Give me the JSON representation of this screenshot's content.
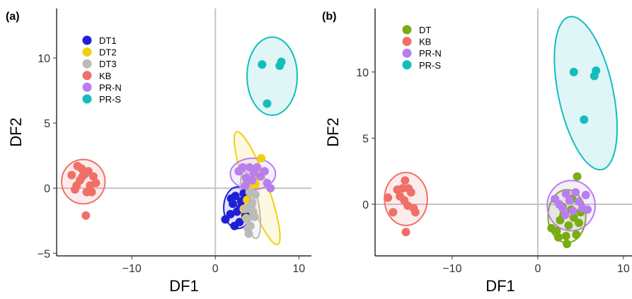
{
  "chart_data": [
    {
      "panel_label": "(a)",
      "type": "scatter",
      "xlabel": "DF1",
      "ylabel": "DF2",
      "xlim": [
        -19,
        11.5
      ],
      "ylim": [
        -5.2,
        13.8
      ],
      "xticks": [
        -10,
        0,
        10
      ],
      "yticks": [
        -5,
        0,
        5,
        10
      ],
      "xtick_labels": [
        "−10",
        "0",
        "10"
      ],
      "ytick_labels": [
        "−5",
        "0",
        "5",
        "10"
      ],
      "reference_lines": {
        "x": 0,
        "y": 0
      },
      "legend_position": "top-left",
      "series": [
        {
          "name": "DT1",
          "color": "#1f1fd6",
          "ellipse": {
            "cx": 2.7,
            "cy": -1.5,
            "rx": 1.7,
            "ry": 1.6,
            "angle": 0
          },
          "points": [
            [
              1.2,
              -2.4
            ],
            [
              1.8,
              -2.0
            ],
            [
              2.1,
              -1.2
            ],
            [
              2.4,
              -0.6
            ],
            [
              2.6,
              -1.8
            ],
            [
              2.9,
              -2.6
            ],
            [
              3.1,
              -1.0
            ],
            [
              3.4,
              -0.4
            ],
            [
              3.6,
              -2.1
            ],
            [
              2.3,
              -2.9
            ],
            [
              3.0,
              -1.5
            ],
            [
              1.9,
              -0.8
            ]
          ]
        },
        {
          "name": "DT2",
          "color": "#f0d010",
          "ellipse": {
            "cx": 5.0,
            "cy": 0.0,
            "rx": 1.3,
            "ry": 4.6,
            "angle": -20
          },
          "points": [
            [
              5.5,
              2.3
            ],
            [
              5.0,
              1.2
            ],
            [
              4.6,
              0.8
            ],
            [
              4.2,
              -0.3
            ],
            [
              3.8,
              -0.9
            ],
            [
              3.4,
              -1.6
            ],
            [
              3.7,
              -2.3
            ],
            [
              4.8,
              0.3
            ],
            [
              4.1,
              -1.2
            ],
            [
              5.3,
              0.9
            ],
            [
              3.9,
              0.2
            ]
          ]
        },
        {
          "name": "DT3",
          "color": "#bbbbbb",
          "ellipse": {
            "cx": 4.2,
            "cy": -1.3,
            "rx": 1.0,
            "ry": 2.6,
            "angle": -10
          },
          "points": [
            [
              4.0,
              -3.5
            ],
            [
              4.2,
              -2.9
            ],
            [
              3.8,
              -2.4
            ],
            [
              4.5,
              -1.8
            ],
            [
              4.4,
              -1.1
            ],
            [
              4.8,
              -0.5
            ],
            [
              3.6,
              -1.6
            ],
            [
              4.1,
              -0.3
            ],
            [
              4.7,
              -2.2
            ],
            [
              3.9,
              -3.1
            ],
            [
              4.3,
              -1.4
            ]
          ]
        },
        {
          "name": "KB",
          "color": "#f07068",
          "ellipse": {
            "cx": -15.8,
            "cy": 0.5,
            "rx": 2.6,
            "ry": 1.7,
            "angle": 0
          },
          "points": [
            [
              -17.2,
              1.0
            ],
            [
              -16.5,
              1.7
            ],
            [
              -16.0,
              1.5
            ],
            [
              -15.6,
              1.1
            ],
            [
              -15.2,
              1.3
            ],
            [
              -14.6,
              0.9
            ],
            [
              -14.3,
              0.4
            ],
            [
              -15.0,
              0.2
            ],
            [
              -16.2,
              0.6
            ],
            [
              -16.6,
              0.2
            ],
            [
              -16.8,
              -0.1
            ],
            [
              -15.4,
              -0.3
            ],
            [
              -14.8,
              -0.3
            ],
            [
              -15.5,
              -2.1
            ],
            [
              -15.9,
              0.9
            ]
          ]
        },
        {
          "name": "PR-N",
          "color": "#b87ef0",
          "ellipse": {
            "cx": 4.5,
            "cy": 1.1,
            "rx": 2.7,
            "ry": 1.2,
            "angle": 0
          },
          "points": [
            [
              2.8,
              1.3
            ],
            [
              3.3,
              1.6
            ],
            [
              3.7,
              0.8
            ],
            [
              4.1,
              1.6
            ],
            [
              4.6,
              1.2
            ],
            [
              5.0,
              1.6
            ],
            [
              5.4,
              0.9
            ],
            [
              5.9,
              1.3
            ],
            [
              6.2,
              0.4
            ],
            [
              6.6,
              0.0
            ],
            [
              3.6,
              0.2
            ],
            [
              4.4,
              0.6
            ]
          ]
        },
        {
          "name": "PR-S",
          "color": "#13bdbd",
          "ellipse": {
            "cx": 6.8,
            "cy": 8.6,
            "rx": 3.0,
            "ry": 3.0,
            "angle": 0
          },
          "points": [
            [
              5.6,
              9.5
            ],
            [
              7.7,
              9.4
            ],
            [
              7.9,
              9.7
            ],
            [
              6.2,
              6.5
            ]
          ]
        }
      ]
    },
    {
      "panel_label": "(b)",
      "type": "scatter",
      "xlabel": "DF1",
      "ylabel": "DF2",
      "xlim": [
        -19,
        11
      ],
      "ylim": [
        -3.9,
        14.8
      ],
      "xticks": [
        -10,
        0,
        10
      ],
      "yticks": [
        0,
        5,
        10
      ],
      "xtick_labels": [
        "−10",
        "0",
        "10"
      ],
      "ytick_labels": [
        "0",
        "5",
        "10"
      ],
      "reference_lines": {
        "x": 0,
        "y": 0
      },
      "legend_position": "top-left",
      "series": [
        {
          "name": "DT",
          "color": "#7aac14",
          "ellipse": {
            "cx": 3.4,
            "cy": -0.9,
            "rx": 2.2,
            "ry": 2.0,
            "angle": 0
          },
          "points": [
            [
              1.6,
              -1.8
            ],
            [
              2.2,
              -2.0
            ],
            [
              2.6,
              -1.2
            ],
            [
              3.0,
              -0.8
            ],
            [
              3.3,
              -2.4
            ],
            [
              3.6,
              -1.6
            ],
            [
              3.9,
              -0.4
            ],
            [
              4.2,
              -1.0
            ],
            [
              4.5,
              -2.3
            ],
            [
              4.8,
              -1.4
            ],
            [
              3.4,
              -3.0
            ],
            [
              4.6,
              2.1
            ],
            [
              2.9,
              -0.2
            ],
            [
              4.0,
              0.4
            ],
            [
              5.0,
              -0.6
            ],
            [
              2.4,
              -2.5
            ]
          ]
        },
        {
          "name": "KB",
          "color": "#f07068",
          "ellipse": {
            "cx": -15.4,
            "cy": 0.4,
            "rx": 2.5,
            "ry": 2.0,
            "angle": 0
          },
          "points": [
            [
              -17.5,
              0.5
            ],
            [
              -16.4,
              1.1
            ],
            [
              -15.8,
              1.2
            ],
            [
              -15.5,
              1.8
            ],
            [
              -15.1,
              1.2
            ],
            [
              -14.8,
              0.9
            ],
            [
              -15.6,
              0.3
            ],
            [
              -14.5,
              -0.3
            ],
            [
              -15.2,
              -0.1
            ],
            [
              -16.9,
              -0.6
            ],
            [
              -14.3,
              -0.6
            ],
            [
              -15.4,
              -2.1
            ],
            [
              -16.1,
              0.6
            ]
          ]
        },
        {
          "name": "PR-N",
          "color": "#b87ef0",
          "ellipse": {
            "cx": 3.9,
            "cy": -0.1,
            "rx": 2.8,
            "ry": 1.9,
            "angle": 0
          },
          "points": [
            [
              2.0,
              0.4
            ],
            [
              2.5,
              0.0
            ],
            [
              2.9,
              -0.3
            ],
            [
              3.3,
              0.8
            ],
            [
              3.7,
              0.3
            ],
            [
              4.1,
              -0.5
            ],
            [
              4.4,
              0.9
            ],
            [
              4.8,
              0.2
            ],
            [
              5.2,
              -0.3
            ],
            [
              5.6,
              0.7
            ],
            [
              3.2,
              -0.8
            ],
            [
              5.8,
              -0.4
            ]
          ]
        },
        {
          "name": "PR-S",
          "color": "#13bdbd",
          "ellipse": {
            "cx": 5.6,
            "cy": 8.4,
            "rx": 3.2,
            "ry": 5.9,
            "angle": -12
          },
          "points": [
            [
              4.2,
              10.0
            ],
            [
              6.6,
              9.7
            ],
            [
              6.8,
              10.1
            ],
            [
              5.4,
              6.4
            ]
          ]
        }
      ]
    }
  ]
}
